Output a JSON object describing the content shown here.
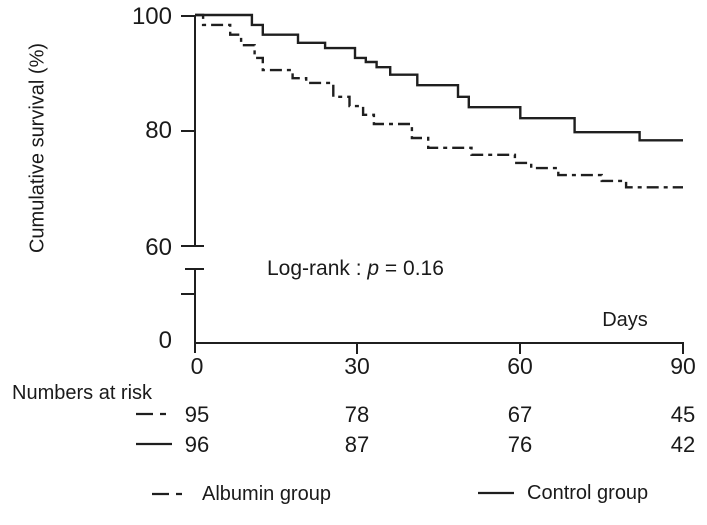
{
  "figure": {
    "y_axis_title": "Cumulative survival (%)",
    "y_ticks": [
      "100",
      "80",
      "60",
      "0"
    ],
    "x_ticks": [
      "0",
      "30",
      "60",
      "90"
    ],
    "x_axis_title": "Days",
    "annotation": {
      "prefix": "Log-rank : ",
      "p": "p",
      "suffix": " = 0.16"
    }
  },
  "numbers_at_risk": {
    "title": "Numbers at risk",
    "rows": [
      {
        "group": "Albumin group",
        "line_style": "dashed",
        "values": [
          "95",
          "78",
          "67",
          "45"
        ]
      },
      {
        "group": "Control group",
        "line_style": "solid",
        "values": [
          "96",
          "87",
          "76",
          "42"
        ]
      }
    ]
  },
  "legend": {
    "albumin_label": "Albumin group",
    "control_label": "Control group"
  },
  "chart_data": {
    "type": "line",
    "subtype": "kaplan-meier-step",
    "title": "",
    "xlabel": "Days",
    "ylabel": "Cumulative survival (%)",
    "xlim": [
      0,
      90
    ],
    "x_ticks": [
      0,
      30,
      60,
      90
    ],
    "y_ticks_percent": [
      100,
      80,
      60,
      0
    ],
    "y_axis_break": "axis broken between 60 and 0",
    "grid": false,
    "legend_position": "bottom",
    "annotation": "Log-rank : p = 0.16",
    "line_color": "#1f1f1f",
    "series": [
      {
        "name": "Albumin group",
        "line_style": "dashed",
        "n_at_risk": {
          "days": [
            0,
            30,
            60,
            90
          ],
          "values": [
            95,
            78,
            67,
            45
          ]
        },
        "steps": [
          [
            0,
            100
          ],
          [
            1.5,
            98.3
          ],
          [
            6.5,
            96.6
          ],
          [
            8.5,
            94.8
          ],
          [
            11,
            92.6
          ],
          [
            12.5,
            90.5
          ],
          [
            18,
            89.1
          ],
          [
            20.5,
            88.3
          ],
          [
            25.5,
            85.9
          ],
          [
            28.5,
            84.3
          ],
          [
            31,
            82.8
          ],
          [
            33,
            81.2
          ],
          [
            40,
            78.8
          ],
          [
            43,
            77.1
          ],
          [
            51,
            75.9
          ],
          [
            59,
            74.5
          ],
          [
            62,
            73.6
          ],
          [
            67,
            72.4
          ],
          [
            75,
            71.4
          ],
          [
            79.5,
            70.3
          ]
        ]
      },
      {
        "name": "Control group",
        "line_style": "solid",
        "n_at_risk": {
          "days": [
            0,
            30,
            60,
            90
          ],
          "values": [
            96,
            87,
            76,
            42
          ]
        },
        "steps": [
          [
            0,
            100
          ],
          [
            10.5,
            98.3
          ],
          [
            12.5,
            96.6
          ],
          [
            19,
            95.2
          ],
          [
            24,
            94.3
          ],
          [
            29.5,
            92.6
          ],
          [
            31.5,
            91.9
          ],
          [
            33.5,
            91.0
          ],
          [
            36,
            89.7
          ],
          [
            41,
            87.9
          ],
          [
            48.5,
            85.9
          ],
          [
            50.5,
            84.1
          ],
          [
            60,
            82.2
          ],
          [
            70,
            79.8
          ],
          [
            82,
            78.4
          ]
        ]
      }
    ]
  }
}
